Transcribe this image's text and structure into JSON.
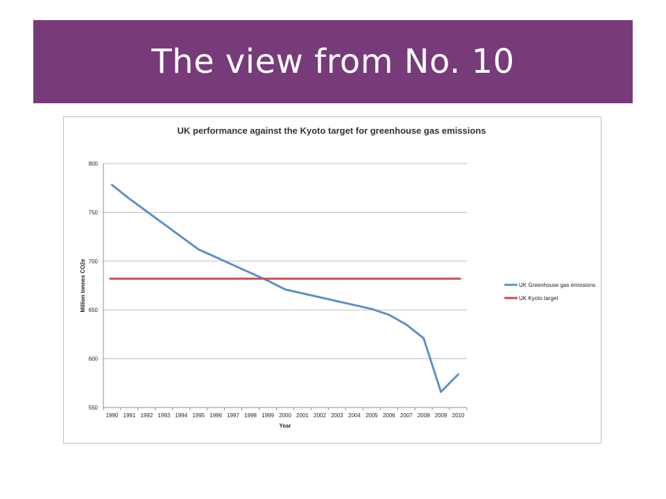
{
  "slide": {
    "title": "The view from No. 10",
    "header_color": "#783b7a"
  },
  "chart_data": {
    "type": "line",
    "title": "UK performance against the Kyoto target for greenhouse gas emissions",
    "xlabel": "Year",
    "ylabel": "Million tonnes CO2e",
    "categories": [
      "1990",
      "1991",
      "1992",
      "1993",
      "1994",
      "1995",
      "1996",
      "1997",
      "1998",
      "1999",
      "2000",
      "2001",
      "2002",
      "2003",
      "2004",
      "2005",
      "2006",
      "2007",
      "2008",
      "2009",
      "2010"
    ],
    "ylim": [
      550,
      800
    ],
    "yticks": [
      "550",
      "600",
      "650",
      "700",
      "750",
      "800"
    ],
    "grid": "horizontal",
    "legend_position": "right",
    "series": [
      {
        "name": "UK Greenhouse gas emissions",
        "color": "#5b8fc7",
        "values": [
          778,
          764,
          751,
          738,
          725,
          712,
          704,
          696,
          688,
          680,
          671,
          667,
          663,
          659,
          655,
          651,
          645,
          635,
          621,
          566,
          584
        ]
      },
      {
        "name": "UK Kyoto target",
        "color": "#c0504d",
        "values": [
          682,
          682,
          682,
          682,
          682,
          682,
          682,
          682,
          682,
          682,
          682,
          682,
          682,
          682,
          682,
          682,
          682,
          682,
          682,
          682,
          682
        ]
      }
    ]
  }
}
